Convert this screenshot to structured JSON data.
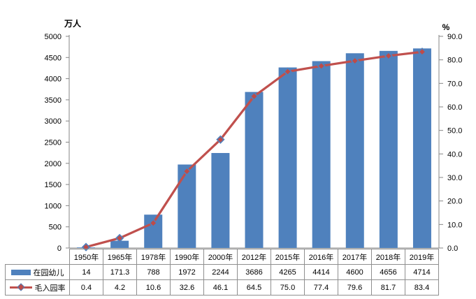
{
  "chart": {
    "left_axis_title": "万人",
    "right_axis_title": "%"
  },
  "chart_data": {
    "type": "bar",
    "title": "",
    "categories": [
      "1950年",
      "1965年",
      "1978年",
      "1990年",
      "2000年",
      "2012年",
      "2015年",
      "2016年",
      "2017年",
      "2018年",
      "2019年"
    ],
    "series": [
      {
        "name": "在园幼儿",
        "type": "bar",
        "axis": "left",
        "color": "#4F81BD",
        "values": [
          14,
          171.3,
          788,
          1972,
          2244,
          3686,
          4265,
          4414,
          4600,
          4656,
          4714
        ]
      },
      {
        "name": "毛入园率",
        "type": "line",
        "axis": "right",
        "color": "#C0504D",
        "marker": "diamond",
        "marker_fill": "#BE4B48",
        "marker_stroke": "#4F81BD",
        "values": [
          0.4,
          4.2,
          10.6,
          32.6,
          46.1,
          64.5,
          75.0,
          77.4,
          79.6,
          81.7,
          83.4
        ]
      }
    ],
    "left_axis": {
      "title": "万人",
      "min": 0,
      "max": 5000,
      "step": 500
    },
    "right_axis": {
      "title": "%",
      "min": 0,
      "max": 90,
      "step": 10
    },
    "grid": false,
    "legend_position": "data-table"
  },
  "table": {
    "columns": [
      "1950年",
      "1965年",
      "1978年",
      "1990年",
      "2000年",
      "2012年",
      "2015年",
      "2016年",
      "2017年",
      "2018年",
      "2019年"
    ],
    "row_labels": [
      "在园幼儿",
      "毛入园率"
    ],
    "rows": [
      [
        "14",
        "171.3",
        "788",
        "1972",
        "2244",
        "3686",
        "4265",
        "4414",
        "4600",
        "4656",
        "4714"
      ],
      [
        "0.4",
        "4.2",
        "10.6",
        "32.6",
        "46.1",
        "64.5",
        "75.0",
        "77.4",
        "79.6",
        "81.7",
        "83.4"
      ]
    ]
  },
  "colors": {
    "bar": "#4F81BD",
    "line": "#C0504D",
    "marker_fill": "#BE4B48",
    "marker_stroke": "#4F81BD",
    "axis": "#868686",
    "table_border": "#8f8f8f"
  }
}
